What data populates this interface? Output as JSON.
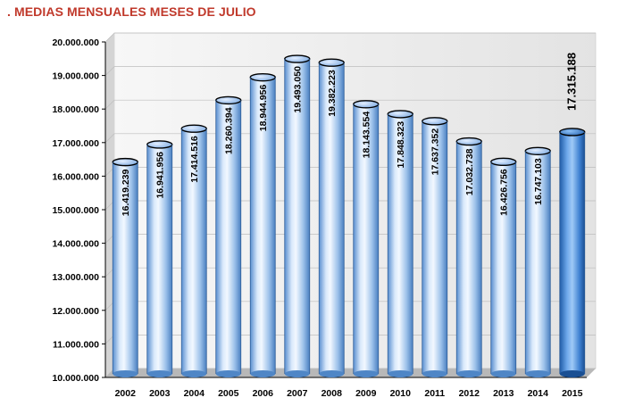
{
  "chart_data": {
    "type": "bar",
    "title": ". MEDIAS MENSUALES MESES DE JULIO",
    "categories": [
      "2002",
      "2003",
      "2004",
      "2005",
      "2006",
      "2007",
      "2008",
      "2009",
      "2010",
      "2011",
      "2012",
      "2013",
      "2014",
      "2015"
    ],
    "values": [
      16419239,
      16941956,
      17414516,
      18260394,
      18944956,
      19493050,
      19382223,
      18143554,
      17848323,
      17637352,
      17032738,
      16426756,
      16747103,
      17315188
    ],
    "value_labels": [
      "16.419.239",
      "16.941.956",
      "17.414.516",
      "18.260.394",
      "18.944.956",
      "19.493.050",
      "19.382.223",
      "18.143.554",
      "17.848.323",
      "17.637.352",
      "17.032.738",
      "16.426.756",
      "16.747.103",
      "17.315.188"
    ],
    "highlight_index": 13,
    "ylim": [
      10000000,
      20000000
    ],
    "yticks": [
      10000000,
      11000000,
      12000000,
      13000000,
      14000000,
      15000000,
      16000000,
      17000000,
      18000000,
      19000000,
      20000000
    ],
    "ytick_labels": [
      "10.000.000",
      "11.000.000",
      "12.000.000",
      "13.000.000",
      "14.000.000",
      "15.000.000",
      "16.000.000",
      "17.000.000",
      "18.000.000",
      "19.000.000",
      "20.000.000"
    ],
    "xlabel": "",
    "ylabel": "",
    "grid": true,
    "legend": "none",
    "colors": {
      "bar": "#9ec3ec",
      "bar_light": "#eaf3fd",
      "bar_dark": "#4f86c6",
      "bar_highlight": "#3f83d6",
      "bar_highlight_dark": "#1a4f93",
      "wall": "#e6e6e6",
      "floor": "#b8b8b8",
      "title": "#c0392b"
    }
  }
}
